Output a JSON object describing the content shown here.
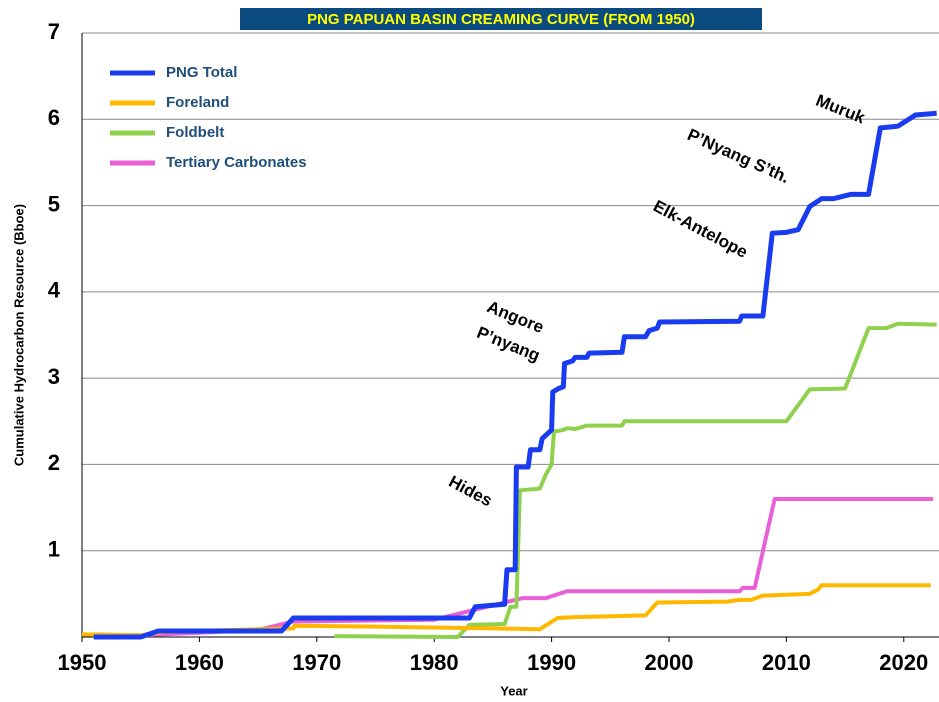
{
  "chart_data": {
    "type": "line",
    "title": "PNG PAPUAN BASIN CREAMING CURVE (FROM 1950)",
    "x_label": "Year",
    "y_label": "Cumulative Hydrocarbon Resource (Bboe)",
    "xlim": [
      1950,
      2023
    ],
    "xticks": [
      1950,
      1960,
      1970,
      1980,
      1990,
      2000,
      2010,
      2020
    ],
    "ylim": [
      0,
      7
    ],
    "yticks": [
      1,
      2,
      3,
      4,
      5,
      6,
      7
    ],
    "grid": true,
    "legend": "upper left",
    "annotations": [
      "Hides",
      "Angore",
      "P’nyang",
      "Elk-Antelope",
      "P’Nyang S’th.",
      "Muruk"
    ],
    "series": [
      {
        "name": "PNG Total",
        "color": "#1a3cf0",
        "x": [
          1951,
          1955,
          1956.5,
          1967,
          1968,
          1983,
          1983.5,
          1986,
          1986.2,
          1986.9,
          1987,
          1988,
          1988.2,
          1989,
          1989.2,
          1990,
          1990.1,
          1990.6,
          1991,
          1991.1,
          1991.8,
          1992,
          1993,
          1993.2,
          1996,
          1996.2,
          1998,
          1998.3,
          1999,
          1999.2,
          2006,
          2006.2,
          2008,
          2008.8,
          2010,
          2011,
          2012,
          2013,
          2014,
          2015.5,
          2017,
          2018,
          2019.5,
          2021,
          2022.8
        ],
        "values": [
          0,
          0,
          0.07,
          0.07,
          0.22,
          0.22,
          0.35,
          0.38,
          0.78,
          0.78,
          1.97,
          1.97,
          2.17,
          2.17,
          2.3,
          2.4,
          2.84,
          2.88,
          2.9,
          3.17,
          3.2,
          3.24,
          3.24,
          3.29,
          3.3,
          3.48,
          3.48,
          3.55,
          3.58,
          3.65,
          3.66,
          3.72,
          3.72,
          4.68,
          4.69,
          4.72,
          4.99,
          5.08,
          5.08,
          5.13,
          5.13,
          5.9,
          5.92,
          6.05,
          6.07
        ]
      },
      {
        "name": "Foreland",
        "color": "#ffb800",
        "x": [
          1950,
          1955,
          1957,
          1968,
          1968.1,
          1975,
          1985,
          1989,
          1990.5,
          1992,
          1998,
          1999,
          2005,
          2006,
          2007,
          2008,
          2012,
          2012.7,
          2013,
          2022.3
        ],
        "values": [
          0.03,
          0.02,
          0.06,
          0.1,
          0.13,
          0.12,
          0.1,
          0.09,
          0.22,
          0.23,
          0.25,
          0.4,
          0.41,
          0.43,
          0.43,
          0.48,
          0.5,
          0.55,
          0.6,
          0.6
        ]
      },
      {
        "name": "Foldbelt",
        "color": "#8fd14f",
        "x": [
          1971.5,
          1982,
          1983,
          1986,
          1986.5,
          1987,
          1987.3,
          1989,
          1989.5,
          1990,
          1990.2,
          1991,
          1991.3,
          1992,
          1993,
          1996,
          1996.2,
          2010,
          2012,
          2015,
          2017,
          2018.5,
          2019.5,
          2022.8
        ],
        "values": [
          0.01,
          0,
          0.14,
          0.15,
          0.35,
          0.35,
          1.7,
          1.72,
          1.88,
          2.0,
          2.38,
          2.4,
          2.42,
          2.41,
          2.45,
          2.45,
          2.5,
          2.5,
          2.87,
          2.88,
          3.58,
          3.58,
          3.63,
          3.62
        ]
      },
      {
        "name": "Tertiary Carbonates",
        "color": "#e85fd6",
        "x": [
          1950,
          1955,
          1965,
          1968,
          1980,
          1983,
          1987.5,
          1989.5,
          1991.3,
          2006,
          2006.3,
          2007.3,
          2009,
          2022.5
        ],
        "values": [
          0.03,
          0.02,
          0.08,
          0.18,
          0.2,
          0.3,
          0.45,
          0.45,
          0.53,
          0.53,
          0.57,
          0.57,
          1.6,
          1.6
        ]
      }
    ]
  }
}
